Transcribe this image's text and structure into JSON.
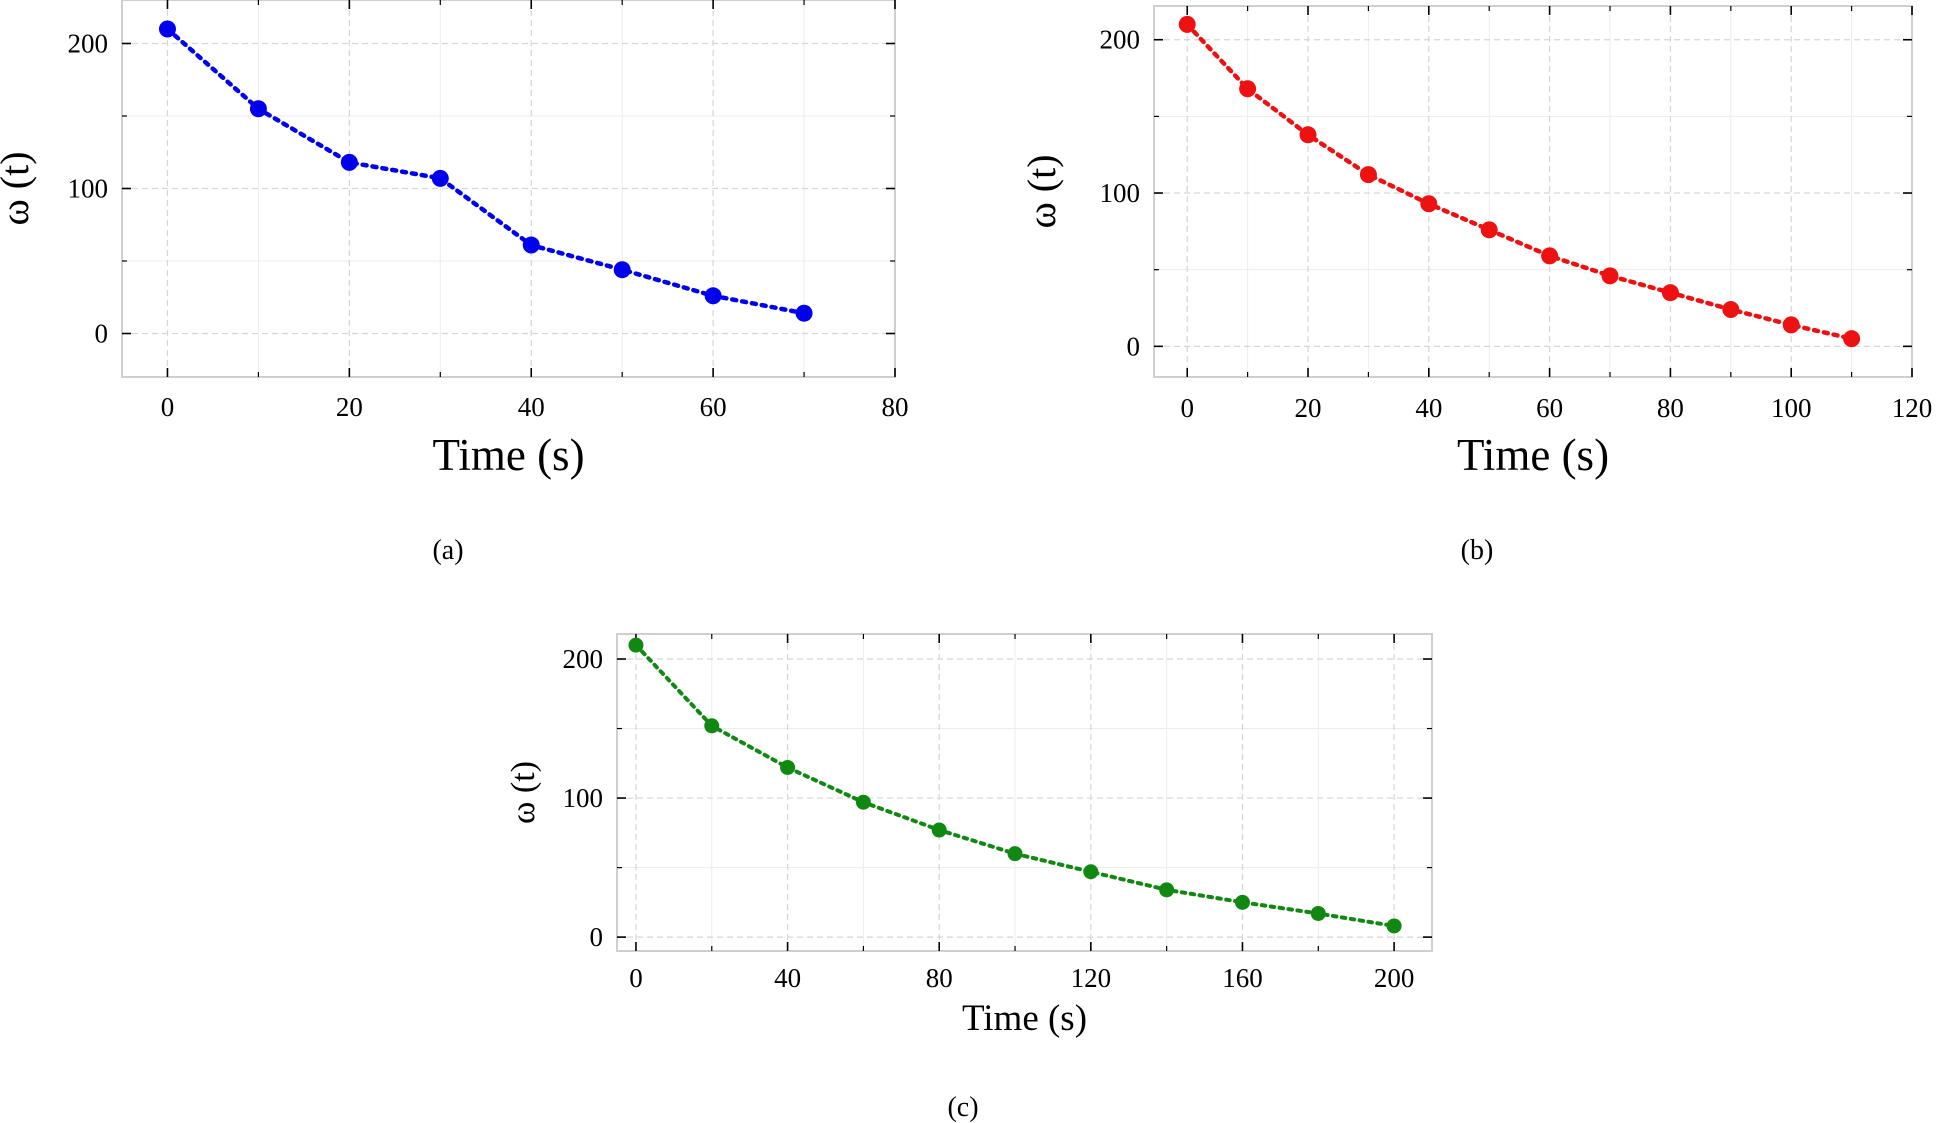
{
  "figure": {
    "captions": [
      "(a)",
      "(b)",
      "(c)"
    ]
  },
  "chart_data": [
    {
      "id": "a",
      "type": "line",
      "marker": "circle",
      "line_style": "dotted",
      "color": "#0000ee",
      "xlabel": "Time (s)",
      "ylabel": "ω (t)",
      "xlim": [
        -5,
        80
      ],
      "ylim": [
        -30,
        230
      ],
      "xticks": [
        0,
        20,
        40,
        60,
        80
      ],
      "xticks_minor": [
        10,
        30,
        50,
        70
      ],
      "yticks": [
        0,
        100,
        200
      ],
      "yticks_minor": [
        50,
        150
      ],
      "grid": true,
      "series": [
        {
          "name": "ω (t)",
          "x": [
            0,
            10,
            20,
            30,
            40,
            50,
            60,
            70
          ],
          "y": [
            210,
            155,
            118,
            107,
            61,
            44,
            26,
            14
          ]
        }
      ]
    },
    {
      "id": "b",
      "type": "line",
      "marker": "circle",
      "line_style": "dotted",
      "color": "#ee1111",
      "xlabel": "Time (s)",
      "ylabel": "ω (t)",
      "xlim": [
        -5.5,
        120
      ],
      "ylim": [
        -20,
        222
      ],
      "xticks": [
        0,
        20,
        40,
        60,
        80,
        100,
        120
      ],
      "xticks_minor": [
        10,
        30,
        50,
        70,
        90,
        110
      ],
      "yticks": [
        0,
        100,
        200
      ],
      "yticks_minor": [
        50,
        150
      ],
      "grid": true,
      "series": [
        {
          "name": "ω (t)",
          "x": [
            0,
            10,
            20,
            30,
            40,
            50,
            60,
            70,
            80,
            90,
            100,
            110
          ],
          "y": [
            210,
            168,
            138,
            112,
            93,
            76,
            59,
            46,
            35,
            24,
            14,
            5
          ]
        }
      ]
    },
    {
      "id": "c",
      "type": "line",
      "marker": "circle",
      "line_style": "dotted",
      "color": "#118811",
      "xlabel": "Time (s)",
      "ylabel": "ω (t)",
      "xlim": [
        -5,
        210
      ],
      "ylim": [
        -10,
        218
      ],
      "xticks": [
        0,
        40,
        80,
        120,
        160,
        200
      ],
      "xticks_minor": [
        20,
        60,
        100,
        140,
        180
      ],
      "yticks": [
        0,
        100,
        200
      ],
      "yticks_minor": [
        50,
        150
      ],
      "grid": true,
      "series": [
        {
          "name": "ω (t)",
          "x": [
            0,
            20,
            40,
            60,
            80,
            100,
            120,
            140,
            160,
            180,
            200
          ],
          "y": [
            210,
            152,
            122,
            97,
            77,
            60,
            47,
            34,
            25,
            17,
            8
          ]
        }
      ]
    }
  ]
}
